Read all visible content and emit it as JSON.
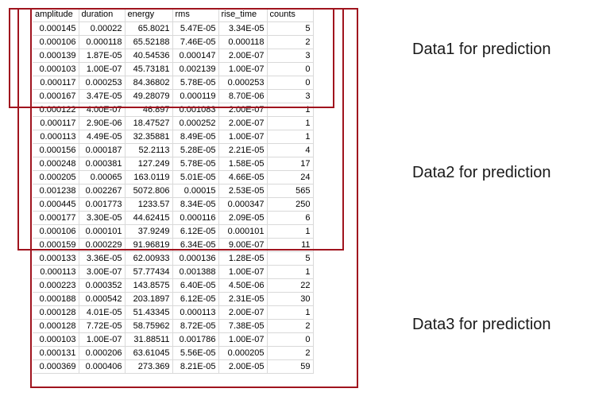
{
  "table": {
    "headers": [
      "amplitude",
      "duration",
      "energy",
      "rms",
      "rise_time",
      "counts"
    ],
    "rows": [
      [
        "0.000145",
        "0.00022",
        "65.8021",
        "5.47E-05",
        "3.34E-05",
        "5"
      ],
      [
        "0.000106",
        "0.000118",
        "65.52188",
        "7.46E-05",
        "0.000118",
        "2"
      ],
      [
        "0.000139",
        "1.87E-05",
        "40.54536",
        "0.000147",
        "2.00E-07",
        "3"
      ],
      [
        "0.000103",
        "1.00E-07",
        "45.73181",
        "0.002139",
        "1.00E-07",
        "0"
      ],
      [
        "0.000117",
        "0.000253",
        "84.36802",
        "5.78E-05",
        "0.000253",
        "0"
      ],
      [
        "0.000167",
        "3.47E-05",
        "49.28079",
        "0.000119",
        "8.70E-06",
        "3"
      ],
      [
        "0.000122",
        "4.00E-07",
        "46.897",
        "0.001083",
        "2.00E-07",
        "1"
      ],
      [
        "0.000117",
        "2.90E-06",
        "18.47527",
        "0.000252",
        "2.00E-07",
        "1"
      ],
      [
        "0.000113",
        "4.49E-05",
        "32.35881",
        "8.49E-05",
        "1.00E-07",
        "1"
      ],
      [
        "0.000156",
        "0.000187",
        "52.2113",
        "5.28E-05",
        "2.21E-05",
        "4"
      ],
      [
        "0.000248",
        "0.000381",
        "127.249",
        "5.78E-05",
        "1.58E-05",
        "17"
      ],
      [
        "0.000205",
        "0.00065",
        "163.0119",
        "5.01E-05",
        "4.66E-05",
        "24"
      ],
      [
        "0.001238",
        "0.002267",
        "5072.806",
        "0.00015",
        "2.53E-05",
        "565"
      ],
      [
        "0.000445",
        "0.001773",
        "1233.57",
        "8.34E-05",
        "0.000347",
        "250"
      ],
      [
        "0.000177",
        "3.30E-05",
        "44.62415",
        "0.000116",
        "2.09E-05",
        "6"
      ],
      [
        "0.000106",
        "0.000101",
        "37.9249",
        "6.12E-05",
        "0.000101",
        "1"
      ],
      [
        "0.000159",
        "0.000229",
        "91.96819",
        "6.34E-05",
        "9.00E-07",
        "11"
      ],
      [
        "0.000133",
        "3.36E-05",
        "62.00933",
        "0.000136",
        "1.28E-05",
        "5"
      ],
      [
        "0.000113",
        "3.00E-07",
        "57.77434",
        "0.001388",
        "1.00E-07",
        "1"
      ],
      [
        "0.000223",
        "0.000352",
        "143.8575",
        "6.40E-05",
        "4.50E-06",
        "22"
      ],
      [
        "0.000188",
        "0.000542",
        "203.1897",
        "6.12E-05",
        "2.31E-05",
        "30"
      ],
      [
        "0.000128",
        "4.01E-05",
        "51.43345",
        "0.000113",
        "2.00E-07",
        "1"
      ],
      [
        "0.000128",
        "7.72E-05",
        "58.75962",
        "8.72E-05",
        "7.38E-05",
        "2"
      ],
      [
        "0.000103",
        "1.00E-07",
        "31.88511",
        "0.001786",
        "1.00E-07",
        "0"
      ],
      [
        "0.000131",
        "0.000206",
        "63.61045",
        "5.56E-05",
        "0.000205",
        "2"
      ],
      [
        "0.000369",
        "0.000406",
        "273.369",
        "8.21E-05",
        "2.00E-05",
        "59"
      ]
    ]
  },
  "labels": {
    "data1": "Data1 for prediction",
    "data2": "Data2 for prediction",
    "data3": "Data3 for prediction"
  },
  "colors": {
    "box_border": "#a0141e",
    "grid_line": "#d9d9d9"
  }
}
